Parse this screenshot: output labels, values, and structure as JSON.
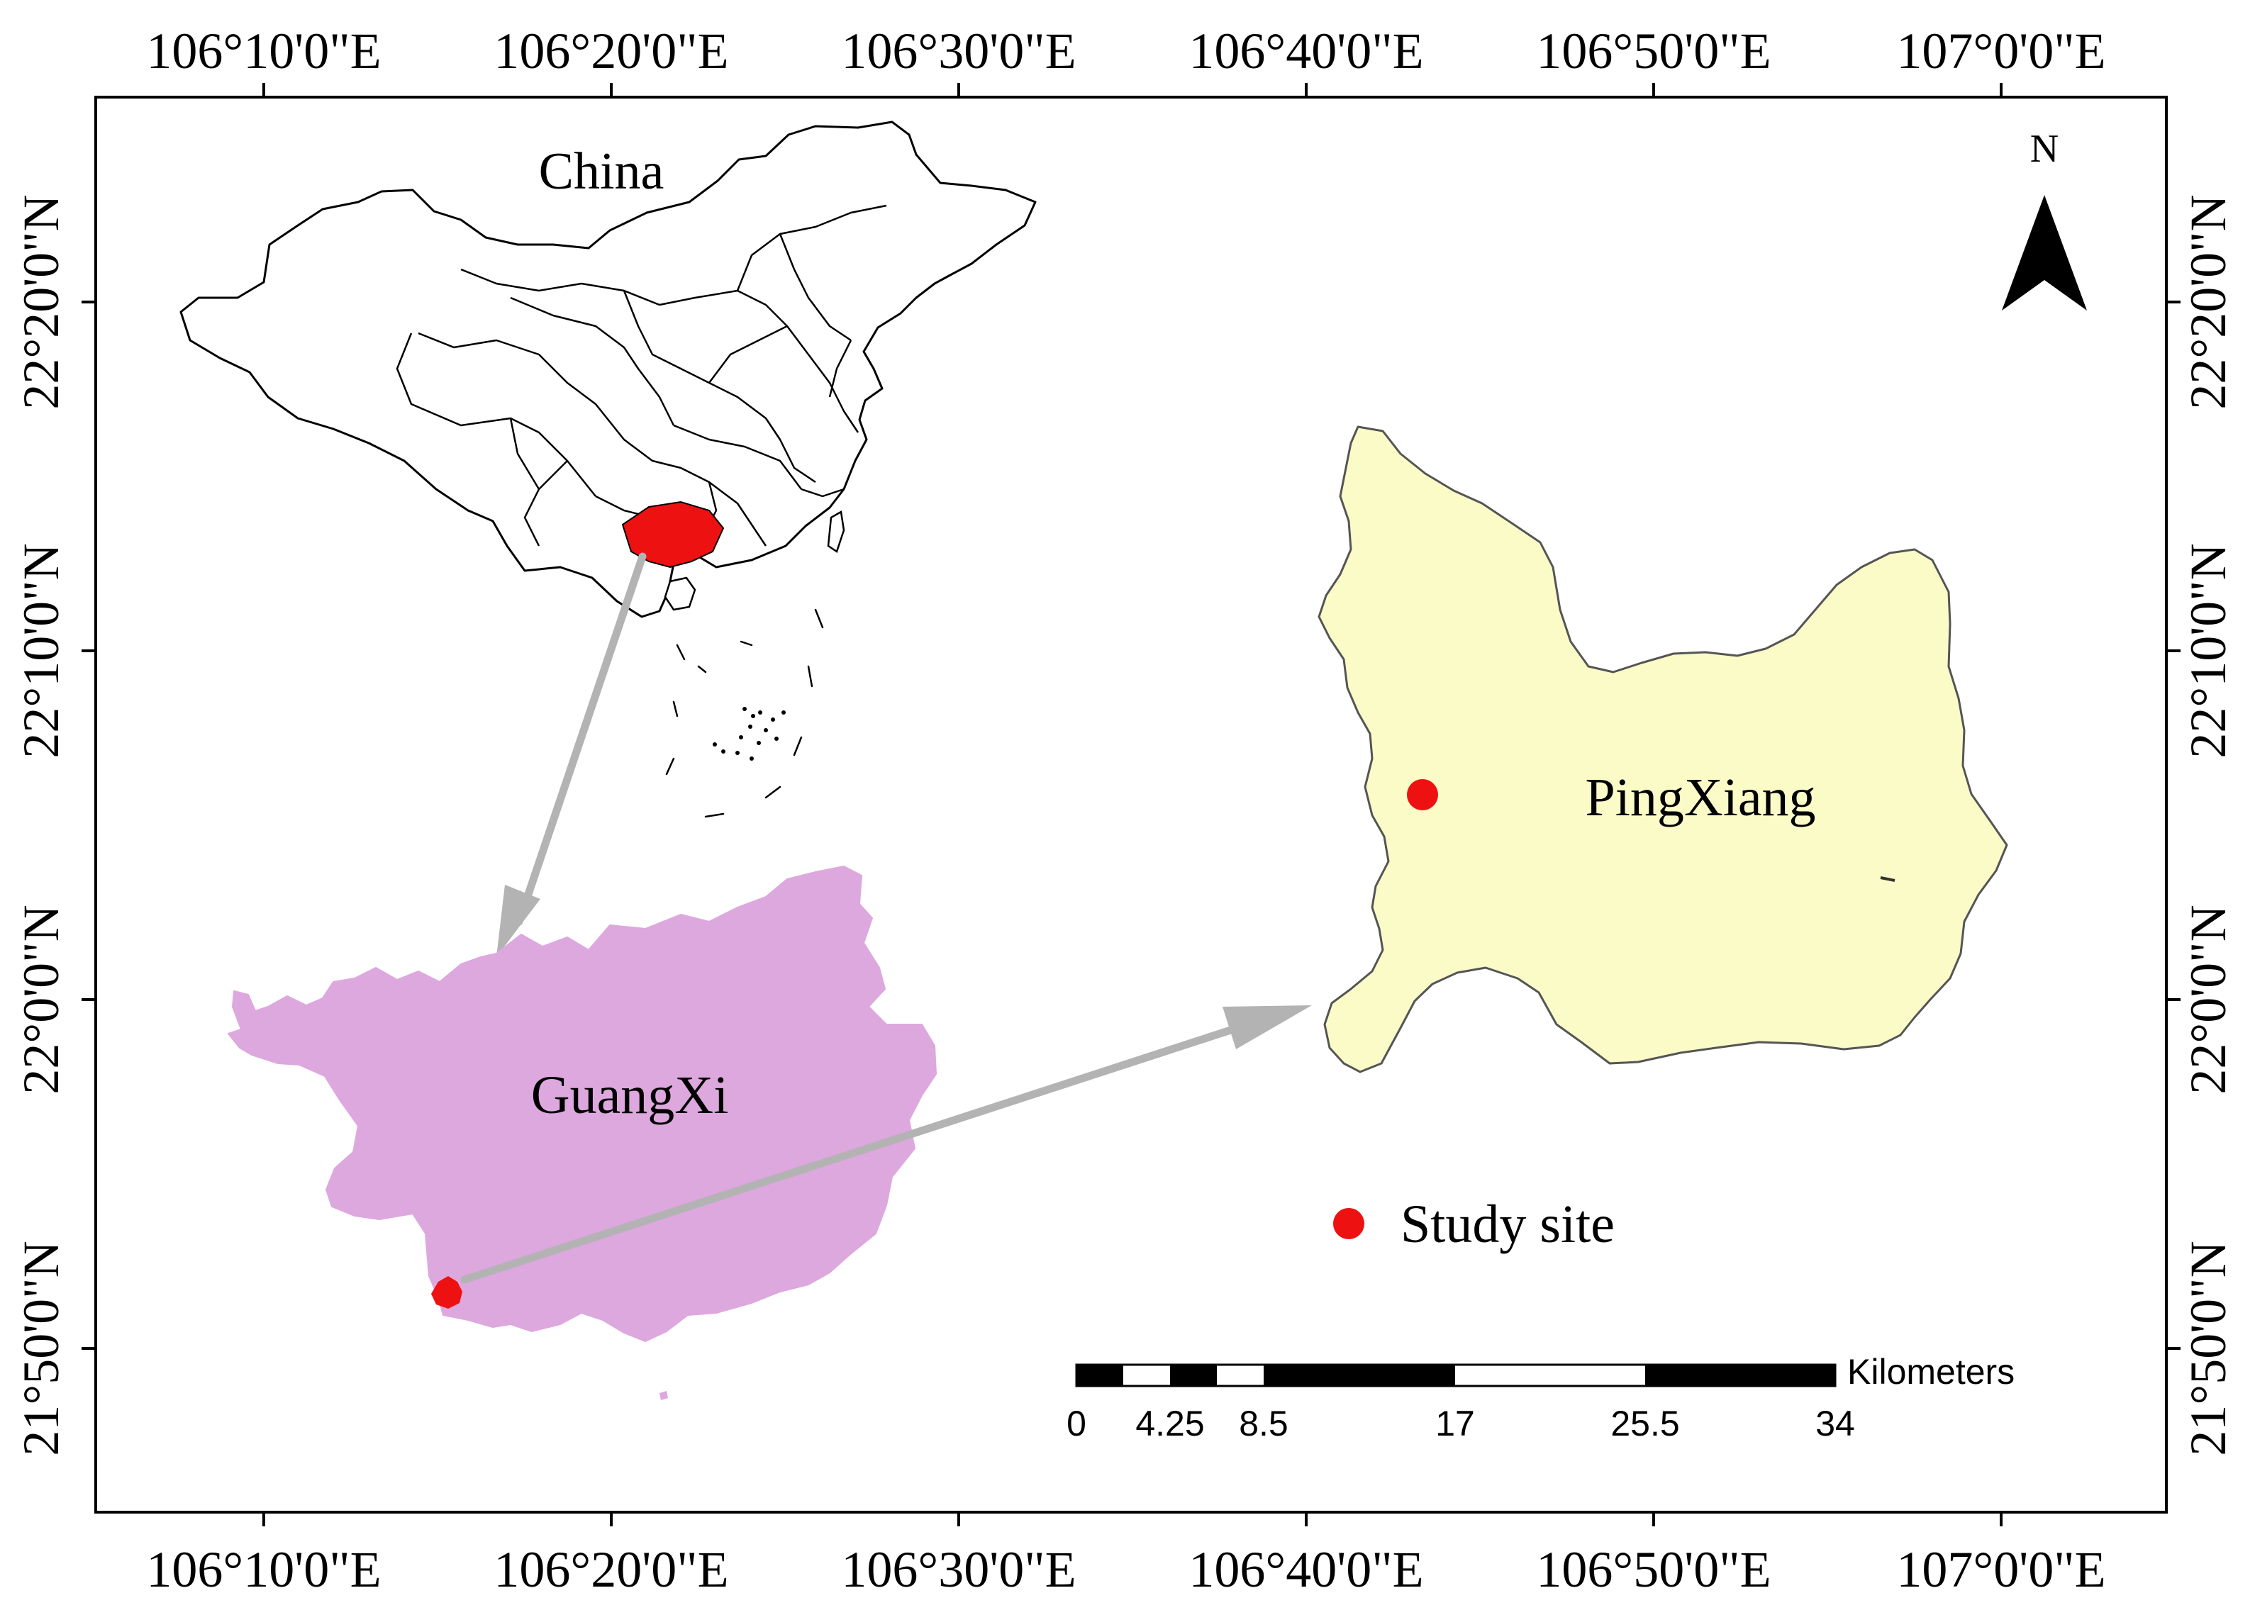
{
  "map": {
    "x_ticks": [
      "106°10'0\"E",
      "106°20'0\"E",
      "106°30'0\"E",
      "106°40'0\"E",
      "106°50'0\"E",
      "107°0'0\"E"
    ],
    "y_ticks": [
      "22°20'0\"N",
      "22°10'0\"N",
      "22°0'0\"N",
      "21°50'0\"N"
    ],
    "labels": {
      "china": "China",
      "guangxi": "GuangXi",
      "pingxiang": "PingXiang",
      "north": "N"
    },
    "legend": {
      "study_site": "Study site"
    },
    "scale_bar": {
      "unit": "Kilometers",
      "ticks": [
        "0",
        "4.25",
        "8.5",
        "17",
        "25.5",
        "34"
      ]
    },
    "colors": {
      "china_fill": "#ffffff",
      "guangxi_fill": "#dda8de",
      "pingxiang_fill": "#fbfbc8",
      "highlight_red": "#ee1111",
      "arrow_gray": "#b3b3b3",
      "frame": "#000000"
    }
  }
}
